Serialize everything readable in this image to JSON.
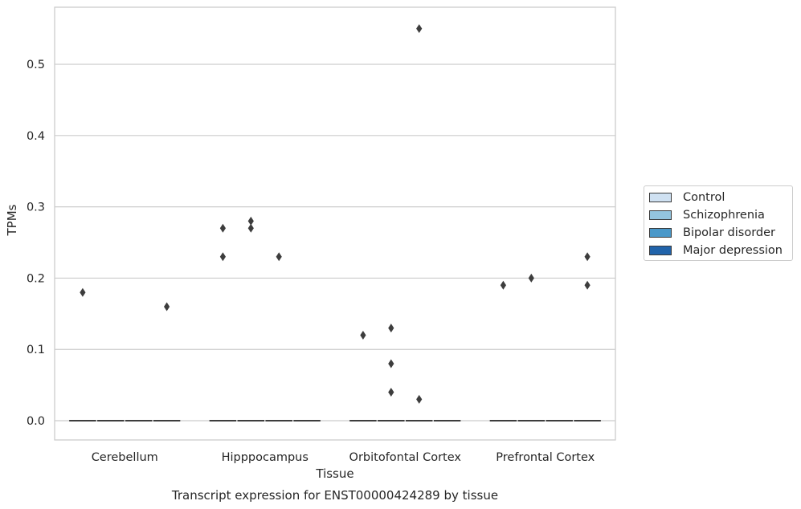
{
  "chart_data": {
    "type": "box",
    "title": "",
    "caption": "Transcript expression for ENST00000424289 by tissue",
    "xlabel": "Tissue",
    "ylabel": "TPMs",
    "categories": [
      "Cerebellum",
      "Hipppocampus",
      "Orbitofontal Cortex",
      "Prefrontal Cortex"
    ],
    "yticks": [
      "0.0",
      "0.1",
      "0.2",
      "0.3",
      "0.4",
      "0.5"
    ],
    "ylim": [
      -0.027,
      0.58
    ],
    "grid": true,
    "legend_position": "right",
    "series": [
      {
        "name": "Control",
        "color": "#cfe1f2",
        "median": 0.0,
        "outliers": [
          {
            "category": "Cerebellum",
            "y": 0.18
          },
          {
            "category": "Hipppocampus",
            "y": 0.27
          },
          {
            "category": "Hipppocampus",
            "y": 0.23
          },
          {
            "category": "Orbitofontal Cortex",
            "y": 0.12
          },
          {
            "category": "Prefrontal Cortex",
            "y": 0.19
          }
        ]
      },
      {
        "name": "Schizophrenia",
        "color": "#93c4de",
        "median": 0.0,
        "outliers": [
          {
            "category": "Hipppocampus",
            "y": 0.28
          },
          {
            "category": "Hipppocampus",
            "y": 0.27
          },
          {
            "category": "Orbitofontal Cortex",
            "y": 0.13
          },
          {
            "category": "Orbitofontal Cortex",
            "y": 0.08
          },
          {
            "category": "Orbitofontal Cortex",
            "y": 0.04
          },
          {
            "category": "Prefrontal Cortex",
            "y": 0.2
          }
        ]
      },
      {
        "name": "Bipolar disorder",
        "color": "#4a98c9",
        "median": 0.0,
        "outliers": [
          {
            "category": "Hipppocampus",
            "y": 0.23
          },
          {
            "category": "Orbitofontal Cortex",
            "y": 0.03
          },
          {
            "category": "Orbitofontal Cortex",
            "y": 0.55
          }
        ]
      },
      {
        "name": "Major depression",
        "color": "#2163aa",
        "median": 0.0,
        "outliers": [
          {
            "category": "Cerebellum",
            "y": 0.16
          },
          {
            "category": "Prefrontal Cortex",
            "y": 0.23
          },
          {
            "category": "Prefrontal Cortex",
            "y": 0.19
          }
        ]
      }
    ],
    "colors": {
      "grid": "#cccccc",
      "frame": "#cccccc",
      "marker": "#3d3d3d",
      "text": "#262626"
    }
  }
}
